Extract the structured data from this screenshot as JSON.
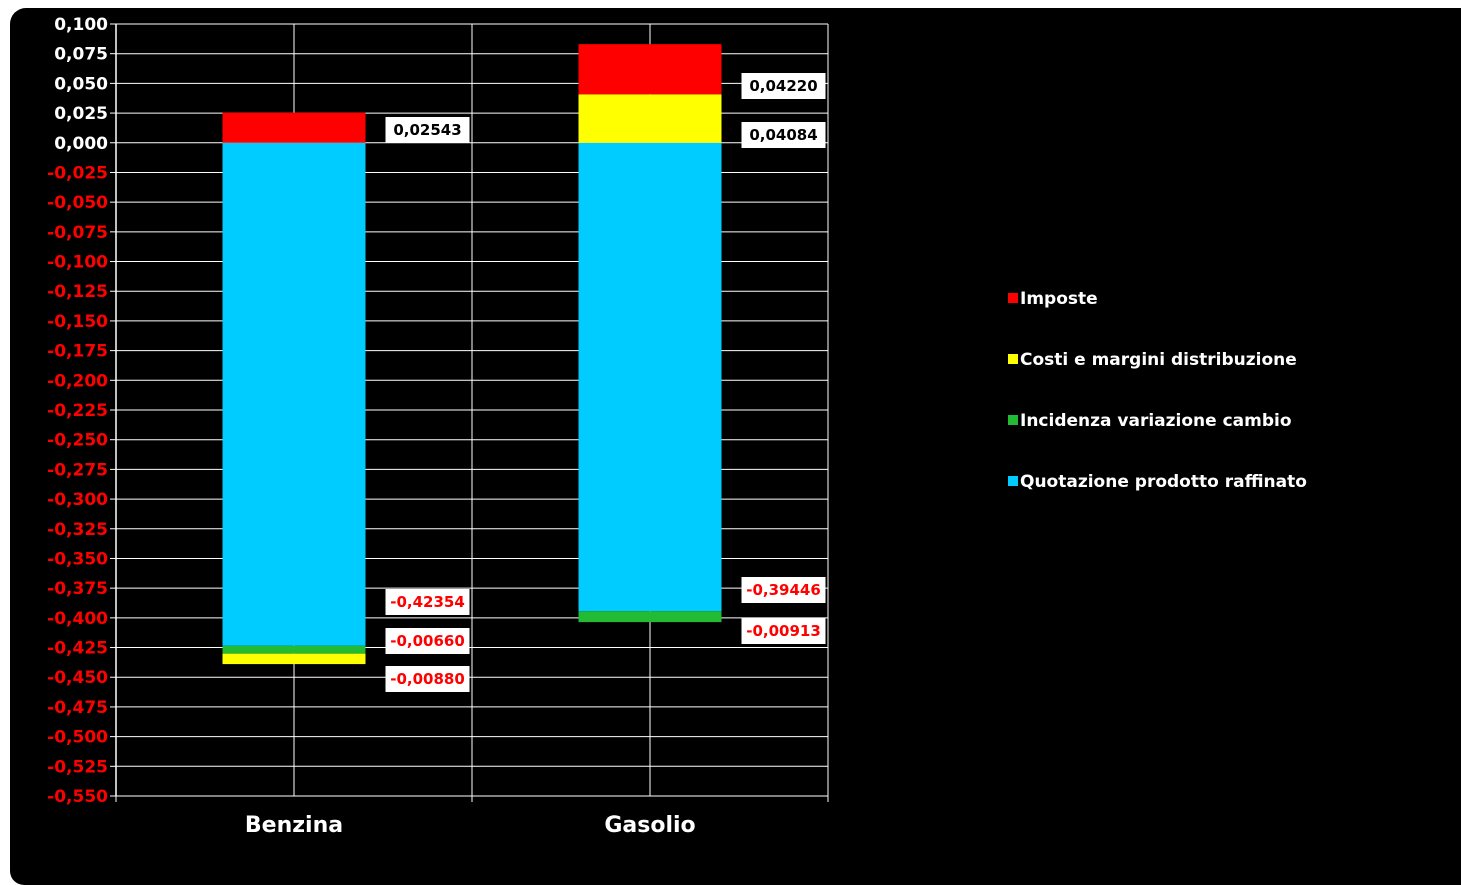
{
  "colors": {
    "background": "#000000",
    "positive_tick": "#ffffff",
    "negative_tick": "#ff0000",
    "gridline": "#ffffff",
    "label_box": "#ffffff",
    "label_text_positive": "#000000",
    "label_text_negative": "#ff0000"
  },
  "chart_data": {
    "type": "bar",
    "stacked": true,
    "categories": [
      "Benzina",
      "Gasolio"
    ],
    "ylim": [
      -0.55,
      0.1
    ],
    "ytick_step": 0.025,
    "yticks": [
      "0,100",
      "0,075",
      "0,050",
      "0,025",
      "0,000",
      "-0,025",
      "-0,050",
      "-0,075",
      "-0,100",
      "-0,125",
      "-0,150",
      "-0,175",
      "-0,200",
      "-0,225",
      "-0,250",
      "-0,275",
      "-0,300",
      "-0,325",
      "-0,350",
      "-0,375",
      "-0,400",
      "-0,425",
      "-0,450",
      "-0,475",
      "-0,500",
      "-0,525",
      "-0,550"
    ],
    "grid": true,
    "legend_position": "right",
    "series": [
      {
        "name": "Quotazione prodotto raffinato",
        "color": "#00ccff",
        "values": [
          -0.42354,
          -0.39446
        ],
        "labels": [
          "-0,42354",
          "-0,39446"
        ]
      },
      {
        "name": "Incidenza variazione cambio",
        "color": "#22bb33",
        "values": [
          -0.0066,
          -0.00913
        ],
        "labels": [
          "-0,00660",
          "-0,00913"
        ]
      },
      {
        "name": "Costi e margini distribuzione",
        "color": "#ffff00",
        "values": [
          -0.0088,
          0.04084
        ],
        "labels": [
          "-0,00880",
          "0,04084"
        ]
      },
      {
        "name": "Imposte",
        "color": "#ff0000",
        "values": [
          0.02543,
          0.0422
        ],
        "labels": [
          "0,02543",
          "0,04220"
        ]
      }
    ],
    "legend_order": [
      "Imposte",
      "Costi e margini distribuzione",
      "Incidenza variazione cambio",
      "Quotazione prodotto raffinato"
    ]
  }
}
